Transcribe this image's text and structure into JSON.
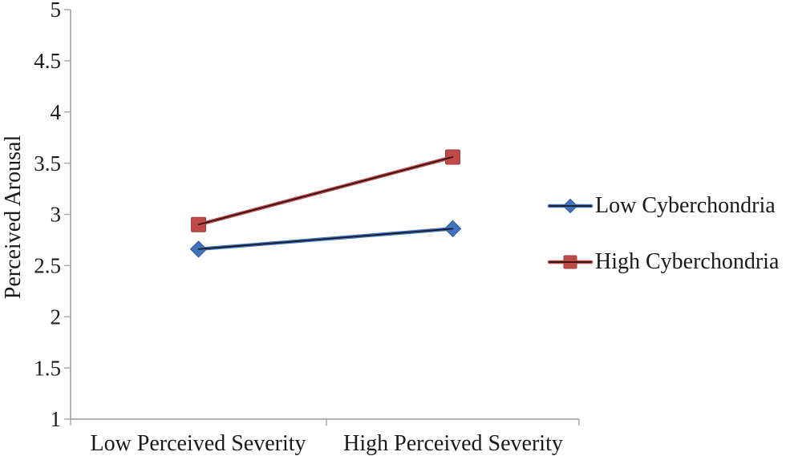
{
  "figure": {
    "background": "#ffffff",
    "text_color": "#1a1a1a",
    "axis_color": "#9a9a9a",
    "tick_color": "#aaaaaa"
  },
  "chart_data": {
    "type": "line",
    "title": "",
    "categories": [
      "Low Perceived Severity",
      "High Perceived Severity"
    ],
    "series": [
      {
        "name": "Low Cyberchondria",
        "values": [
          2.66,
          2.86
        ],
        "color": "#4072BE",
        "marker": "diamond",
        "marker_edge": "#2E5894"
      },
      {
        "name": "High Cyberchondria",
        "values": [
          2.9,
          3.56
        ],
        "color": "#C04A47",
        "marker": "square",
        "marker_edge": "#9A3D3B"
      }
    ],
    "xlabel": "",
    "ylabel": "Perceived Arousal",
    "ylim": [
      1,
      5
    ],
    "ytick_step": 0.5,
    "ytick_labels": [
      "1",
      "1.5",
      "2",
      "2.5",
      "3",
      "3.5",
      "4",
      "4.5",
      "5"
    ],
    "grid": false,
    "legend_position": "center-right",
    "line_core_color": "rgba(18,8,8,0.85)"
  }
}
